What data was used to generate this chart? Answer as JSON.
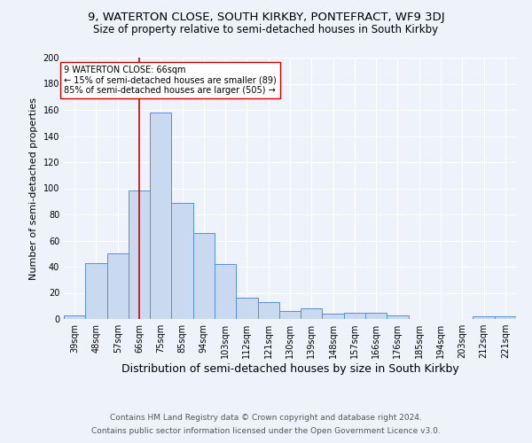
{
  "title1": "9, WATERTON CLOSE, SOUTH KIRKBY, PONTEFRACT, WF9 3DJ",
  "title2": "Size of property relative to semi-detached houses in South Kirkby",
  "xlabel": "Distribution of semi-detached houses by size in South Kirkby",
  "ylabel": "Number of semi-detached properties",
  "categories": [
    "39sqm",
    "48sqm",
    "57sqm",
    "66sqm",
    "75sqm",
    "85sqm",
    "94sqm",
    "103sqm",
    "112sqm",
    "121sqm",
    "130sqm",
    "139sqm",
    "148sqm",
    "157sqm",
    "166sqm",
    "176sqm",
    "185sqm",
    "194sqm",
    "203sqm",
    "212sqm",
    "221sqm"
  ],
  "values": [
    3,
    43,
    50,
    98,
    158,
    89,
    66,
    42,
    16,
    13,
    6,
    8,
    4,
    5,
    5,
    3,
    0,
    0,
    0,
    2,
    2
  ],
  "bar_color": "#c9d9f0",
  "bar_edge_color": "#5b8dd9",
  "property_label": "9 WATERTON CLOSE: 66sqm",
  "pct_smaller": 15,
  "n_smaller": 89,
  "pct_larger": 85,
  "n_larger": 505,
  "vline_color": "#cc0000",
  "vline_x_index": 3,
  "annotation_box_color": "#ffffff",
  "annotation_box_edge": "#cc0000",
  "ylim": [
    0,
    200
  ],
  "yticks": [
    0,
    20,
    40,
    60,
    80,
    100,
    120,
    140,
    160,
    180,
    200
  ],
  "footer1": "Contains HM Land Registry data © Crown copyright and database right 2024.",
  "footer2": "Contains public sector information licensed under the Open Government Licence v3.0.",
  "bg_color": "#eef2fb",
  "grid_color": "#ffffff",
  "title1_fontsize": 9.5,
  "title2_fontsize": 8.5,
  "xlabel_fontsize": 9,
  "ylabel_fontsize": 8,
  "tick_fontsize": 7,
  "footer_fontsize": 6.5
}
